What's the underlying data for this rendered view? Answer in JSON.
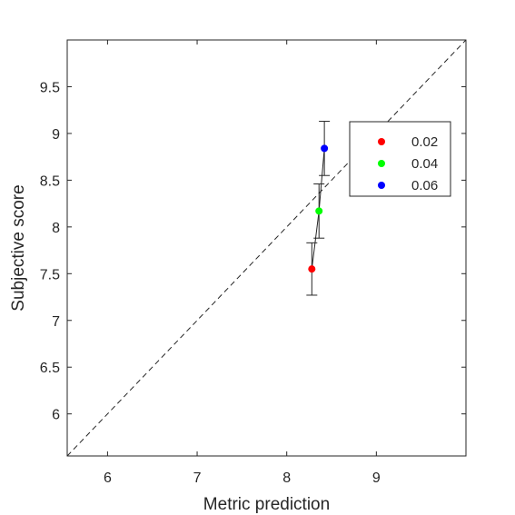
{
  "chart_data": {
    "type": "scatter",
    "xlabel": "Metric prediction",
    "ylabel": "Subjective score",
    "xlim": [
      5.55,
      10.0
    ],
    "ylim": [
      5.55,
      10.0
    ],
    "xticks": [
      6,
      7,
      8,
      9
    ],
    "yticks": [
      6,
      6.5,
      7,
      7.5,
      8,
      8.5,
      9,
      9.5
    ],
    "xtick_labels": [
      "6",
      "7",
      "8",
      "9"
    ],
    "ytick_labels": [
      "6",
      "6.5",
      "7",
      "7.5",
      "8",
      "8.5",
      "9",
      "9.5"
    ],
    "reference_line": "y = x (dashed)",
    "series": [
      {
        "name": "0.02",
        "color": "#ff0000",
        "x": 8.28,
        "y": 7.55,
        "yerr": 0.28
      },
      {
        "name": "0.04",
        "color": "#00ff00",
        "x": 8.36,
        "y": 8.17,
        "yerr": 0.29
      },
      {
        "name": "0.06",
        "color": "#0000ff",
        "x": 8.42,
        "y": 8.84,
        "yerr": 0.29
      }
    ],
    "legend_position": "top-right",
    "grid": false
  }
}
